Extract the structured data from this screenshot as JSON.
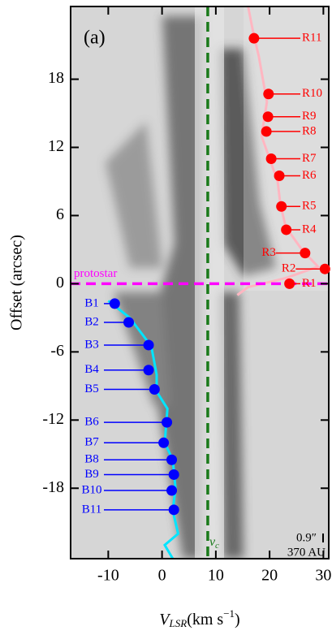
{
  "chart_data": {
    "type": "scatter",
    "panel_label": "(a)",
    "xlabel": {
      "main": "V",
      "sub": "LSR",
      "rest": "(km s",
      "sup": "−1",
      "end": ")"
    },
    "ylabel": "Offset (arcsec)",
    "xlim": [
      -17,
      31
    ],
    "ylim": [
      -24.2,
      24.4
    ],
    "xticks": [
      -10,
      0,
      10,
      20,
      30
    ],
    "yticks": [
      -18,
      -12,
      -6,
      0,
      6,
      12,
      18
    ],
    "series": [
      {
        "color": "#ff0000",
        "labels": [
          "R1",
          "R2",
          "R3",
          "R4",
          "R5",
          "R6",
          "R7",
          "R8",
          "R9",
          "R10",
          "R11"
        ],
        "x": [
          23.7,
          30.3,
          26.6,
          23.1,
          22.2,
          21.8,
          20.3,
          19.4,
          19.7,
          19.8,
          17.1
        ],
        "values": [
          0.0,
          1.3,
          2.7,
          4.75,
          6.8,
          9.5,
          11.0,
          13.4,
          14.7,
          16.7,
          21.6
        ]
      },
      {
        "color": "#0000ff",
        "labels": [
          "B1",
          "B2",
          "B3",
          "B4",
          "B5",
          "B6",
          "B7",
          "B8",
          "B9",
          "B10",
          "B11"
        ],
        "x": [
          -8.8,
          -6.2,
          -2.5,
          -2.5,
          -1.4,
          0.9,
          0.3,
          1.8,
          2.2,
          1.8,
          2.2
        ],
        "values": [
          -1.75,
          -3.4,
          -5.4,
          -7.6,
          -9.3,
          -12.2,
          -14.0,
          -15.5,
          -16.8,
          -18.2,
          -19.9
        ]
      }
    ],
    "curves": [
      {
        "color": "#ffb6c1",
        "x": [
          16,
          17,
          18,
          19.5,
          18.5,
          20,
          21.5,
          22,
          23,
          26,
          29,
          23,
          16,
          14
        ],
        "y": [
          24.4,
          22,
          20,
          16,
          13,
          11,
          9,
          7,
          5,
          3,
          1.5,
          0.5,
          -0.3,
          -1
        ]
      },
      {
        "color": "#00e5ff",
        "x": [
          -10,
          -6,
          -2,
          -1,
          -1,
          1,
          0.5,
          2,
          2.5,
          2,
          3,
          0.5,
          2
        ],
        "y": [
          -1.5,
          -3,
          -5.5,
          -8,
          -9.5,
          -11,
          -14,
          -15.5,
          -18,
          -20,
          -22,
          -23,
          -24.2
        ]
      }
    ],
    "protostar": {
      "value": 0,
      "label": "protostar",
      "color": "#ff00ff"
    },
    "vc": {
      "value": 8.5,
      "text": "v",
      "sub": "c",
      "color": "#1a7a1a"
    },
    "scale_bar": {
      "angle": "0.9″",
      "length": "370 AU"
    }
  }
}
